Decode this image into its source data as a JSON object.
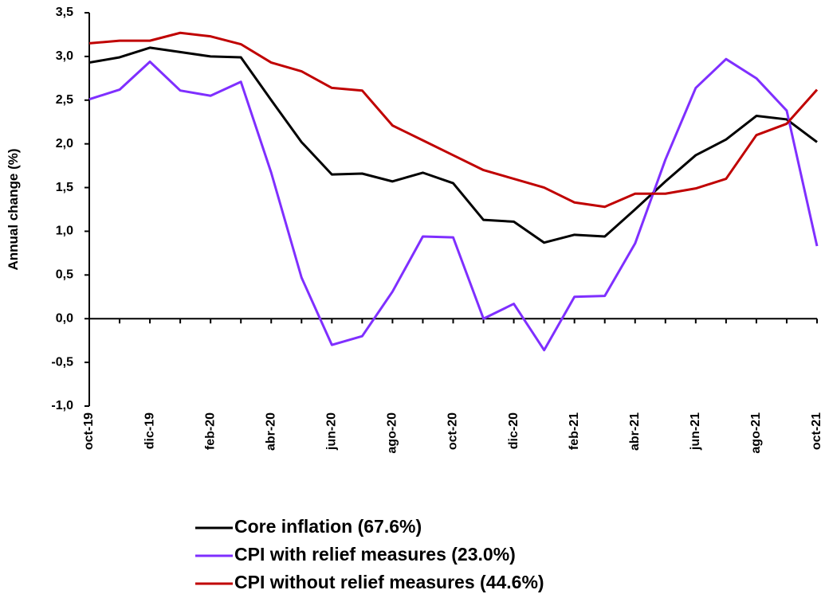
{
  "chart_data": {
    "type": "line",
    "y_label": "Annual change (%)",
    "categories": [
      "oct-19",
      null,
      "dic-19",
      null,
      "feb-20",
      null,
      "abr-20",
      null,
      "jun-20",
      null,
      "ago-20",
      null,
      "oct-20",
      null,
      "dic-20",
      null,
      "feb-21",
      null,
      "abr-21",
      null,
      "jun-21",
      null,
      "ago-21",
      null,
      "oct-21"
    ],
    "series": [
      {
        "name": "Core inflation (67.6%)",
        "color": "#000000",
        "values": [
          2.93,
          2.99,
          3.1,
          3.05,
          3.0,
          2.99,
          2.5,
          2.02,
          1.65,
          1.66,
          1.57,
          1.67,
          1.55,
          1.13,
          1.11,
          0.87,
          0.96,
          0.94,
          1.25,
          1.57,
          1.87,
          2.05,
          2.32,
          2.28,
          2.02
        ]
      },
      {
        "name": "CPI with relief measures (23.0%)",
        "color": "#7f2fff",
        "values": [
          2.51,
          2.62,
          2.94,
          2.61,
          2.55,
          2.71,
          1.67,
          0.47,
          -0.3,
          -0.2,
          0.31,
          0.94,
          0.93,
          0.0,
          0.17,
          -0.36,
          0.25,
          0.26,
          0.86,
          1.82,
          2.64,
          2.97,
          2.75,
          2.38,
          0.83
        ]
      },
      {
        "name": "CPI without relief measures (44.6%)",
        "color": "#c00000",
        "values": [
          3.15,
          3.18,
          3.18,
          3.27,
          3.23,
          3.14,
          2.93,
          2.83,
          2.64,
          2.61,
          2.21,
          2.04,
          1.87,
          1.7,
          1.6,
          1.5,
          1.33,
          1.28,
          1.43,
          1.43,
          1.49,
          1.6,
          2.1,
          2.23,
          2.62
        ]
      }
    ],
    "ylim": [
      -1.0,
      3.5
    ],
    "yticks": [
      {
        "value": -1.0,
        "label": "-1,0"
      },
      {
        "value": -0.5,
        "label": "-0,5"
      },
      {
        "value": 0.0,
        "label": "0,0"
      },
      {
        "value": 0.5,
        "label": "0,5"
      },
      {
        "value": 1.0,
        "label": "1,0"
      },
      {
        "value": 1.5,
        "label": "1,5"
      },
      {
        "value": 2.0,
        "label": "2,0"
      },
      {
        "value": 2.5,
        "label": "2,5"
      },
      {
        "value": 3.0,
        "label": "3,0"
      },
      {
        "value": 3.5,
        "label": "3,5"
      }
    ],
    "grid": false,
    "legend": "bottom"
  }
}
